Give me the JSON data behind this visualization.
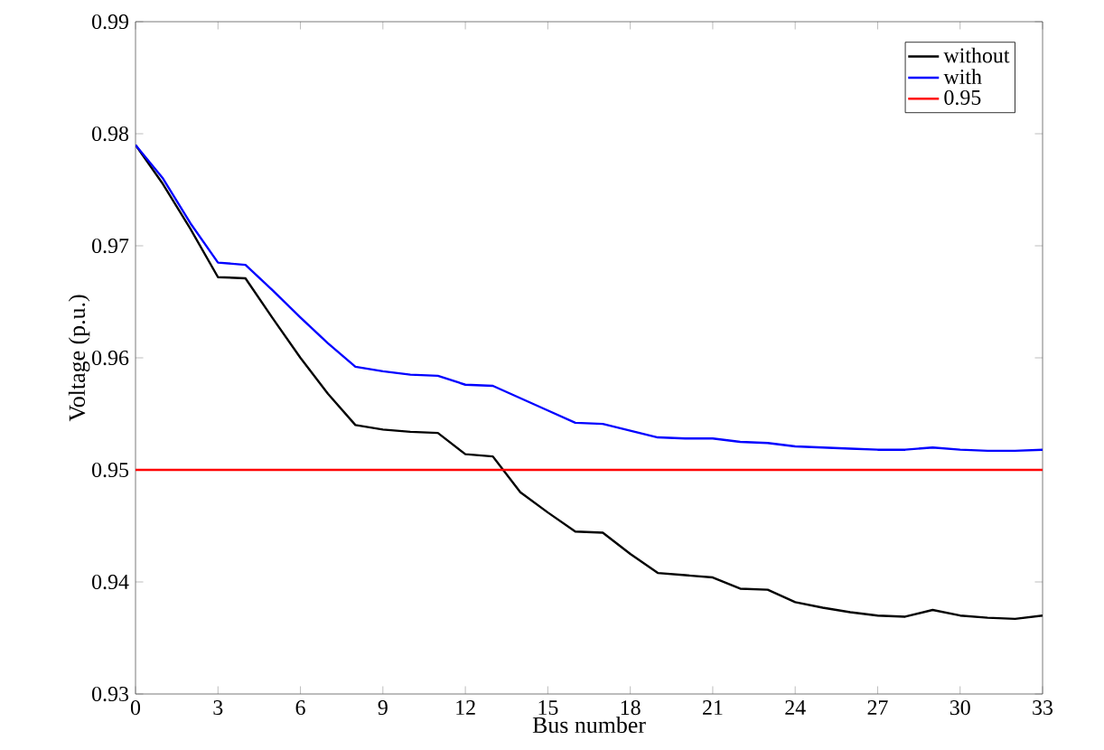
{
  "chart_data": {
    "type": "line",
    "xlabel": "Bus number",
    "ylabel": "Voltage (p.u.)",
    "x": [
      0,
      1,
      2,
      3,
      4,
      5,
      6,
      7,
      8,
      9,
      10,
      11,
      12,
      13,
      14,
      15,
      16,
      17,
      18,
      19,
      20,
      21,
      22,
      23,
      24,
      25,
      26,
      27,
      28,
      29,
      30,
      31,
      32,
      33
    ],
    "xlim": [
      0,
      33
    ],
    "xticks": [
      0,
      3,
      6,
      9,
      12,
      15,
      18,
      21,
      24,
      27,
      30,
      33
    ],
    "ylim": [
      0.93,
      0.99
    ],
    "yticks": [
      0.93,
      0.94,
      0.95,
      0.96,
      0.97,
      0.98,
      0.99
    ],
    "legend": "top right",
    "grid": false,
    "series": [
      {
        "name": "without",
        "color": "#000000",
        "values": [
          0.979,
          0.9755,
          0.9715,
          0.9672,
          0.9671,
          0.9635,
          0.96,
          0.9568,
          0.954,
          0.9536,
          0.9534,
          0.9533,
          0.9514,
          0.9512,
          0.948,
          0.9462,
          0.9445,
          0.9444,
          0.9425,
          0.9408,
          0.9406,
          0.9404,
          0.9394,
          0.9393,
          0.9382,
          0.9377,
          0.9373,
          0.937,
          0.9369,
          0.9375,
          0.937,
          0.9368,
          0.9367,
          0.937
        ]
      },
      {
        "name": "with",
        "color": "#0000ff",
        "values": [
          0.979,
          0.976,
          0.972,
          0.9685,
          0.9683,
          0.966,
          0.9636,
          0.9613,
          0.9592,
          0.9588,
          0.9585,
          0.9584,
          0.9576,
          0.9575,
          0.9564,
          0.9553,
          0.9542,
          0.9541,
          0.9535,
          0.9529,
          0.9528,
          0.9528,
          0.9525,
          0.9524,
          0.9521,
          0.952,
          0.9519,
          0.9518,
          0.9518,
          0.952,
          0.9518,
          0.9517,
          0.9517,
          0.9518
        ]
      },
      {
        "name": "0.95",
        "color": "#ff0000",
        "x": [
          0,
          33
        ],
        "values": [
          0.95,
          0.95
        ]
      }
    ]
  }
}
